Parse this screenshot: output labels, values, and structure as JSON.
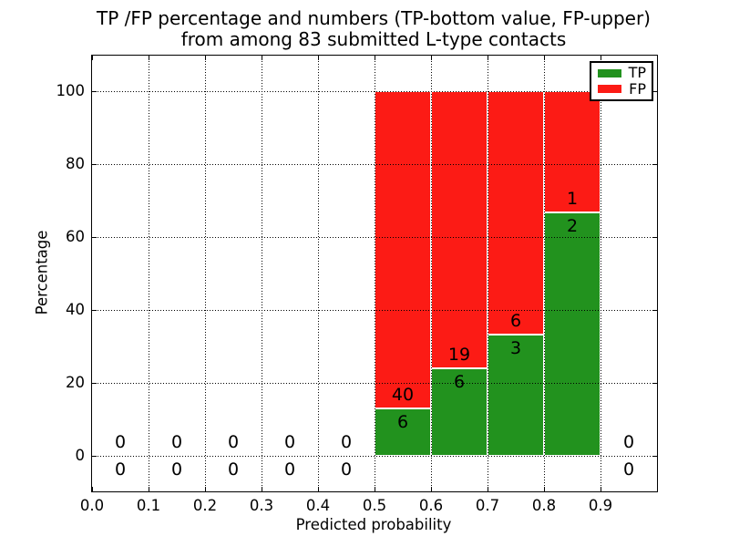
{
  "chart_data": {
    "type": "bar",
    "stacked": true,
    "title_lines": [
      "TP /FP percentage and numbers (TP-bottom value, FP-upper)",
      "from among 83 submitted L-type contacts"
    ],
    "xlabel": "Predicted probability",
    "ylabel": "Percentage",
    "total_submitted_contacts": 83,
    "xlim": [
      0.0,
      1.0
    ],
    "ylim": [
      -10,
      110
    ],
    "grid": true,
    "grid_style": "dotted",
    "legend_position": "upper right",
    "series": [
      {
        "name": "TP",
        "color": "#22921e"
      },
      {
        "name": "FP",
        "color": "#fc1b15"
      }
    ],
    "bar_edge_color": "#ffffff",
    "xticks": [
      {
        "v": 0.0,
        "label": "0.0"
      },
      {
        "v": 0.1,
        "label": "0.1"
      },
      {
        "v": 0.2,
        "label": "0.2"
      },
      {
        "v": 0.3,
        "label": "0.3"
      },
      {
        "v": 0.4,
        "label": "0.4"
      },
      {
        "v": 0.5,
        "label": "0.5"
      },
      {
        "v": 0.6,
        "label": "0.6"
      },
      {
        "v": 0.7,
        "label": "0.7"
      },
      {
        "v": 0.8,
        "label": "0.8"
      },
      {
        "v": 0.9,
        "label": "0.9"
      },
      {
        "v": 1.0,
        "label": ""
      }
    ],
    "yticks": [
      {
        "v": 0,
        "label": "0"
      },
      {
        "v": 20,
        "label": "20"
      },
      {
        "v": 40,
        "label": "40"
      },
      {
        "v": 60,
        "label": "60"
      },
      {
        "v": 80,
        "label": "80"
      },
      {
        "v": 100,
        "label": "100"
      }
    ],
    "bins": [
      {
        "x0": 0.0,
        "x1": 0.1,
        "tp": 0,
        "fp": 0,
        "tp_pct": 0,
        "fp_pct": 0
      },
      {
        "x0": 0.1,
        "x1": 0.2,
        "tp": 0,
        "fp": 0,
        "tp_pct": 0,
        "fp_pct": 0
      },
      {
        "x0": 0.2,
        "x1": 0.3,
        "tp": 0,
        "fp": 0,
        "tp_pct": 0,
        "fp_pct": 0
      },
      {
        "x0": 0.3,
        "x1": 0.4,
        "tp": 0,
        "fp": 0,
        "tp_pct": 0,
        "fp_pct": 0
      },
      {
        "x0": 0.4,
        "x1": 0.5,
        "tp": 0,
        "fp": 0,
        "tp_pct": 0,
        "fp_pct": 0
      },
      {
        "x0": 0.5,
        "x1": 0.6,
        "tp": 6,
        "fp": 40,
        "tp_pct": 13.04,
        "fp_pct": 86.96
      },
      {
        "x0": 0.6,
        "x1": 0.7,
        "tp": 6,
        "fp": 19,
        "tp_pct": 24.0,
        "fp_pct": 76.0
      },
      {
        "x0": 0.7,
        "x1": 0.8,
        "tp": 3,
        "fp": 6,
        "tp_pct": 33.33,
        "fp_pct": 66.67
      },
      {
        "x0": 0.8,
        "x1": 0.9,
        "tp": 2,
        "fp": 1,
        "tp_pct": 66.67,
        "fp_pct": 33.33
      },
      {
        "x0": 0.9,
        "x1": 1.0,
        "tp": 0,
        "fp": 0,
        "tp_pct": 0,
        "fp_pct": 0
      }
    ]
  }
}
